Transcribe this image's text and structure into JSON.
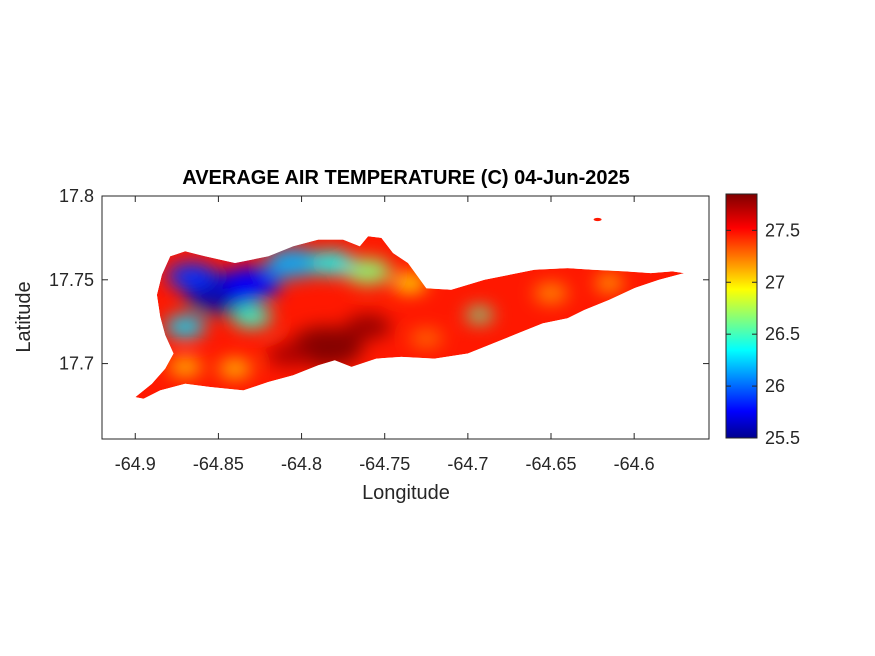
{
  "chart_data": {
    "type": "heatmap",
    "title": "AVERAGE AIR TEMPERATURE (C) 04-Jun-2025",
    "xlabel": "Longitude",
    "ylabel": "Latitude",
    "xlim": [
      -64.92,
      -64.555
    ],
    "ylim": [
      17.655,
      17.8
    ],
    "xticks": [
      -64.9,
      -64.85,
      -64.8,
      -64.75,
      -64.7,
      -64.65,
      -64.6
    ],
    "xtick_labels": [
      "-64.9",
      "-64.85",
      "-64.8",
      "-64.75",
      "-64.7",
      "-64.65",
      "-64.6"
    ],
    "yticks": [
      17.7,
      17.75,
      17.8
    ],
    "ytick_labels": [
      "17.7",
      "17.75",
      "17.8"
    ],
    "colormap": "jet",
    "colorbar": {
      "range": [
        25.5,
        27.85
      ],
      "ticks": [
        25.5,
        26,
        26.5,
        27,
        27.5
      ],
      "tick_labels": [
        "25.5",
        "26",
        "26.5",
        "27",
        "27.5"
      ]
    },
    "grid": false,
    "base_value": 27.5,
    "island_outline": [
      [
        -64.9,
        17.68
      ],
      [
        -64.89,
        17.688
      ],
      [
        -64.882,
        17.697
      ],
      [
        -64.877,
        17.706
      ],
      [
        -64.882,
        17.717
      ],
      [
        -64.885,
        17.728
      ],
      [
        -64.887,
        17.741
      ],
      [
        -64.884,
        17.753
      ],
      [
        -64.879,
        17.764
      ],
      [
        -64.87,
        17.767
      ],
      [
        -64.858,
        17.764
      ],
      [
        -64.84,
        17.76
      ],
      [
        -64.82,
        17.764
      ],
      [
        -64.805,
        17.77
      ],
      [
        -64.79,
        17.774
      ],
      [
        -64.775,
        17.774
      ],
      [
        -64.765,
        17.77
      ],
      [
        -64.76,
        17.776
      ],
      [
        -64.752,
        17.775
      ],
      [
        -64.745,
        17.766
      ],
      [
        -64.736,
        17.76
      ],
      [
        -64.725,
        17.745
      ],
      [
        -64.71,
        17.744
      ],
      [
        -64.7,
        17.747
      ],
      [
        -64.69,
        17.75
      ],
      [
        -64.675,
        17.753
      ],
      [
        -64.66,
        17.756
      ],
      [
        -64.64,
        17.757
      ],
      [
        -64.625,
        17.756
      ],
      [
        -64.605,
        17.755
      ],
      [
        -64.59,
        17.754
      ],
      [
        -64.577,
        17.755
      ],
      [
        -64.57,
        17.754
      ],
      [
        -64.585,
        17.75
      ],
      [
        -64.6,
        17.745
      ],
      [
        -64.615,
        17.738
      ],
      [
        -64.63,
        17.732
      ],
      [
        -64.64,
        17.727
      ],
      [
        -64.655,
        17.724
      ],
      [
        -64.67,
        17.718
      ],
      [
        -64.685,
        17.712
      ],
      [
        -64.7,
        17.706
      ],
      [
        -64.72,
        17.703
      ],
      [
        -64.74,
        17.704
      ],
      [
        -64.755,
        17.703
      ],
      [
        -64.77,
        17.698
      ],
      [
        -64.78,
        17.702
      ],
      [
        -64.79,
        17.699
      ],
      [
        -64.805,
        17.693
      ],
      [
        -64.82,
        17.689
      ],
      [
        -64.835,
        17.684
      ],
      [
        -64.855,
        17.686
      ],
      [
        -64.87,
        17.688
      ],
      [
        -64.885,
        17.684
      ],
      [
        -64.895,
        17.679
      ]
    ],
    "islet": [
      -64.622,
      17.786
    ],
    "samples": [
      {
        "lon": -64.848,
        "lat": 17.742,
        "value": 25.6,
        "radius": 0.022
      },
      {
        "lon": -64.83,
        "lat": 17.748,
        "value": 25.8,
        "radius": 0.018
      },
      {
        "lon": -64.866,
        "lat": 17.752,
        "value": 25.9,
        "radius": 0.015
      },
      {
        "lon": -64.805,
        "lat": 17.76,
        "value": 26.2,
        "radius": 0.016
      },
      {
        "lon": -64.782,
        "lat": 17.76,
        "value": 26.4,
        "radius": 0.013
      },
      {
        "lon": -64.76,
        "lat": 17.755,
        "value": 26.7,
        "radius": 0.014
      },
      {
        "lon": -64.735,
        "lat": 17.748,
        "value": 27.0,
        "radius": 0.01
      },
      {
        "lon": -64.87,
        "lat": 17.722,
        "value": 26.3,
        "radius": 0.012
      },
      {
        "lon": -64.83,
        "lat": 17.728,
        "value": 26.5,
        "radius": 0.012
      },
      {
        "lon": -64.693,
        "lat": 17.729,
        "value": 26.6,
        "radius": 0.008
      },
      {
        "lon": -64.65,
        "lat": 17.742,
        "value": 27.2,
        "radius": 0.01
      },
      {
        "lon": -64.615,
        "lat": 17.748,
        "value": 27.1,
        "radius": 0.008
      },
      {
        "lon": -64.785,
        "lat": 17.71,
        "value": 27.85,
        "radius": 0.022
      },
      {
        "lon": -64.76,
        "lat": 17.722,
        "value": 27.8,
        "radius": 0.014
      },
      {
        "lon": -64.808,
        "lat": 17.705,
        "value": 27.75,
        "radius": 0.013
      },
      {
        "lon": -64.84,
        "lat": 17.697,
        "value": 27.1,
        "radius": 0.01
      },
      {
        "lon": -64.87,
        "lat": 17.698,
        "value": 27.1,
        "radius": 0.01
      },
      {
        "lon": -64.725,
        "lat": 17.715,
        "value": 27.3,
        "radius": 0.01
      }
    ]
  }
}
